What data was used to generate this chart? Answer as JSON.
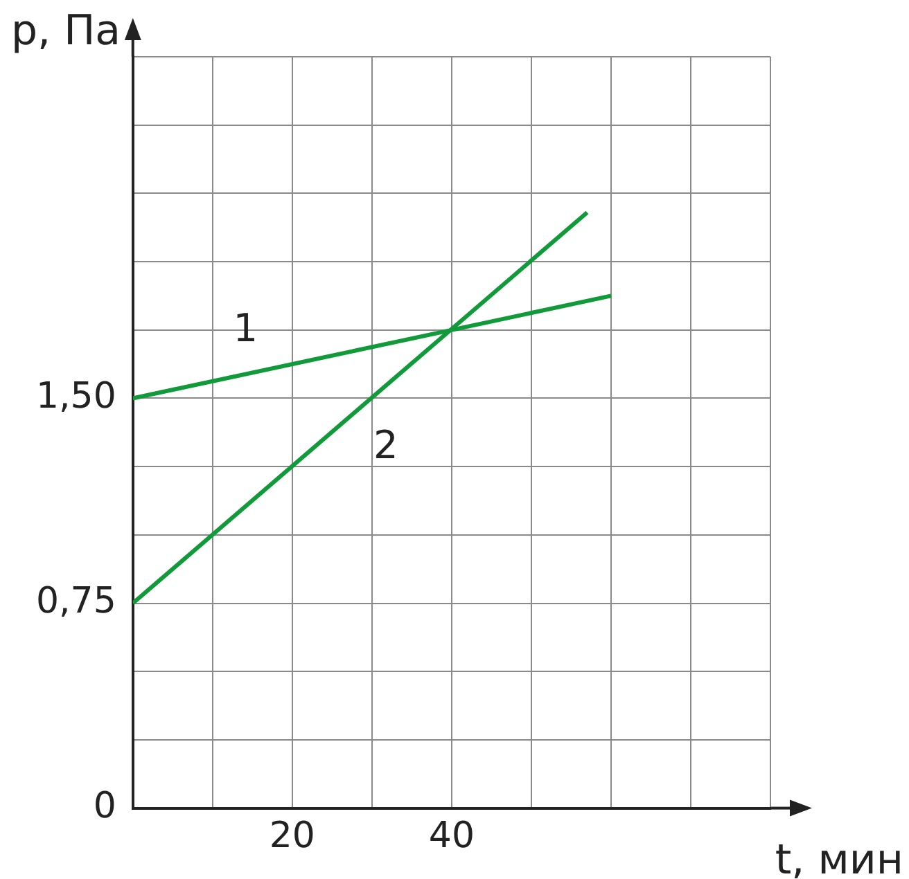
{
  "chart_data": {
    "type": "line",
    "xlabel": "t, мин",
    "ylabel": "p, Па",
    "xlim": [
      0,
      80
    ],
    "xticks": [
      {
        "value": 0,
        "label": null
      },
      {
        "value": 10,
        "label": null
      },
      20,
      {
        "value": 30,
        "label": null
      },
      40,
      {
        "value": 50,
        "label": null
      },
      {
        "value": 60,
        "label": null
      },
      {
        "value": 70,
        "label": null
      },
      {
        "value": 80,
        "label": null
      }
    ],
    "ylim": [
      0,
      2.75
    ],
    "yticks": [
      {
        "value": 0,
        "label": "0"
      },
      {
        "value": 0.25,
        "label": null
      },
      {
        "value": 0.5,
        "label": null
      },
      {
        "value": 0.75,
        "label": "0,75"
      },
      {
        "value": 1,
        "label": null
      },
      {
        "value": 1.25,
        "label": null
      },
      {
        "value": 1.5,
        "label": "1,50"
      },
      {
        "value": 1.75,
        "label": null
      },
      {
        "value": 2,
        "label": null
      },
      {
        "value": 2.25,
        "label": null
      },
      {
        "value": 2.5,
        "label": null
      },
      {
        "value": 2.75,
        "label": null
      }
    ],
    "grid": true,
    "legend": false,
    "marker": "none",
    "line_style": "solid",
    "series": [
      {
        "name": "1",
        "color": "#119a3a",
        "x": [
          0,
          60
        ],
        "values": [
          1.5,
          1.875
        ]
      },
      {
        "name": "2",
        "color": "#119a3a",
        "x": [
          0,
          57
        ],
        "values": [
          0.75,
          2.18
        ]
      }
    ]
  }
}
